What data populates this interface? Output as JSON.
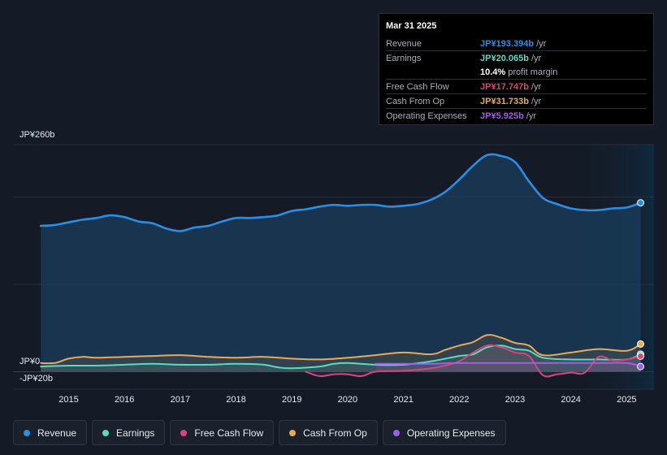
{
  "tooltip": {
    "date": "Mar 31 2025",
    "rows": [
      {
        "label": "Revenue",
        "value": "JP¥193.394b",
        "unit": "/yr",
        "color": "#2c8ee3"
      },
      {
        "label": "Earnings",
        "value": "JP¥20.065b",
        "unit": "/yr",
        "color": "#5ed8c4"
      },
      {
        "label": "",
        "value": "10.4%",
        "unit": "profit margin",
        "color": "#ffffff"
      },
      {
        "label": "Free Cash Flow",
        "value": "JP¥17.747b",
        "unit": "/yr",
        "color": "#d4467d"
      },
      {
        "label": "Cash From Op",
        "value": "JP¥31.733b",
        "unit": "/yr",
        "color": "#e9a95a"
      },
      {
        "label": "Operating Expenses",
        "value": "JP¥5.925b",
        "unit": "/yr",
        "color": "#a25ce8"
      }
    ]
  },
  "chart_data": {
    "type": "area",
    "title": "",
    "ylim": [
      -20,
      260
    ],
    "y_tick_labels": [
      "JP¥260b",
      "JP¥0",
      "-JP¥20b"
    ],
    "x_ticks": [
      2015,
      2016,
      2017,
      2018,
      2019,
      2020,
      2021,
      2022,
      2023,
      2024,
      2025
    ],
    "x_tick_labels": [
      "2015",
      "2016",
      "2017",
      "2018",
      "2019",
      "2020",
      "2021",
      "2022",
      "2023",
      "2024",
      "2025"
    ],
    "xlim": [
      2014.5,
      2025.25
    ],
    "highlight_from": 2024.25,
    "series": [
      {
        "name": "Revenue",
        "color": "#2c8ee3",
        "x": [
          2014.5,
          2014.75,
          2015.0,
          2015.25,
          2015.5,
          2015.75,
          2016.0,
          2016.25,
          2016.5,
          2016.75,
          2017.0,
          2017.25,
          2017.5,
          2017.75,
          2018.0,
          2018.25,
          2018.5,
          2018.75,
          2019.0,
          2019.25,
          2019.5,
          2019.75,
          2020.0,
          2020.25,
          2020.5,
          2020.75,
          2021.0,
          2021.25,
          2021.5,
          2021.75,
          2022.0,
          2022.25,
          2022.5,
          2022.75,
          2023.0,
          2023.25,
          2023.5,
          2023.75,
          2024.0,
          2024.25,
          2024.5,
          2024.75,
          2025.0,
          2025.25
        ],
        "values": [
          167,
          168,
          171,
          174,
          176,
          179,
          177,
          172,
          170,
          164,
          161,
          165,
          167,
          172,
          176,
          176,
          177,
          179,
          184,
          186,
          189,
          191,
          190,
          191,
          191,
          189,
          190,
          192,
          197,
          206,
          220,
          236,
          248,
          247,
          240,
          218,
          199,
          192,
          187,
          185,
          185,
          187,
          188,
          193.394
        ]
      },
      {
        "name": "Earnings",
        "color": "#5ed8c4",
        "x": [
          2014.5,
          2015.0,
          2015.5,
          2016.0,
          2016.5,
          2017.0,
          2017.5,
          2018.0,
          2018.5,
          2018.75,
          2019.0,
          2019.5,
          2019.75,
          2020.0,
          2020.5,
          2021.0,
          2021.5,
          2022.0,
          2022.25,
          2022.5,
          2022.75,
          2023.0,
          2023.25,
          2023.5,
          2024.0,
          2024.5,
          2025.0,
          2025.25
        ],
        "values": [
          6,
          7,
          7,
          8,
          9,
          8,
          8,
          9,
          8,
          5,
          4,
          6,
          9,
          10,
          8,
          8,
          12,
          18,
          20,
          28,
          30,
          26,
          24,
          16,
          14,
          14,
          14,
          20.065
        ]
      },
      {
        "name": "Free Cash Flow",
        "color": "#d4467d",
        "x": [
          2019.25,
          2019.5,
          2019.75,
          2020.0,
          2020.25,
          2020.5,
          2021.0,
          2021.5,
          2021.75,
          2022.0,
          2022.25,
          2022.5,
          2022.75,
          2023.0,
          2023.25,
          2023.5,
          2023.75,
          2024.0,
          2024.25,
          2024.5,
          2024.75,
          2025.0,
          2025.25
        ],
        "values": [
          0,
          -5,
          -3,
          -3,
          -5,
          0,
          1,
          4,
          7,
          12,
          22,
          30,
          28,
          22,
          18,
          -4,
          -3,
          -1,
          -1,
          17,
          13,
          14,
          17.747
        ]
      },
      {
        "name": "Cash From Op",
        "color": "#e9a95a",
        "x": [
          2014.5,
          2014.75,
          2015.0,
          2015.25,
          2015.5,
          2016.0,
          2016.5,
          2017.0,
          2017.5,
          2018.0,
          2018.5,
          2019.0,
          2019.5,
          2020.0,
          2020.5,
          2021.0,
          2021.5,
          2021.75,
          2022.0,
          2022.25,
          2022.5,
          2022.75,
          2023.0,
          2023.25,
          2023.5,
          2024.0,
          2024.5,
          2025.0,
          2025.25
        ],
        "values": [
          10,
          10,
          15,
          17,
          16,
          17,
          18,
          19,
          17,
          16,
          17,
          15,
          14,
          16,
          19,
          22,
          20,
          25,
          30,
          34,
          42,
          39,
          33,
          30,
          19,
          22,
          26,
          24,
          31.733
        ]
      },
      {
        "name": "Operating Expenses",
        "color": "#a25ce8",
        "x": [
          2020.5,
          2021.0,
          2021.5,
          2022.0,
          2022.5,
          2023.0,
          2023.5,
          2024.0,
          2024.5,
          2025.0,
          2025.25
        ],
        "values": [
          9,
          9,
          9,
          10,
          10,
          10,
          10,
          10,
          10,
          10,
          5.925
        ]
      }
    ]
  },
  "legend": {
    "items": [
      {
        "label": "Revenue",
        "color": "#2c8ee3"
      },
      {
        "label": "Earnings",
        "color": "#5ed8c4"
      },
      {
        "label": "Free Cash Flow",
        "color": "#d4467d"
      },
      {
        "label": "Cash From Op",
        "color": "#e9a95a"
      },
      {
        "label": "Operating Expenses",
        "color": "#a25ce8"
      }
    ]
  }
}
